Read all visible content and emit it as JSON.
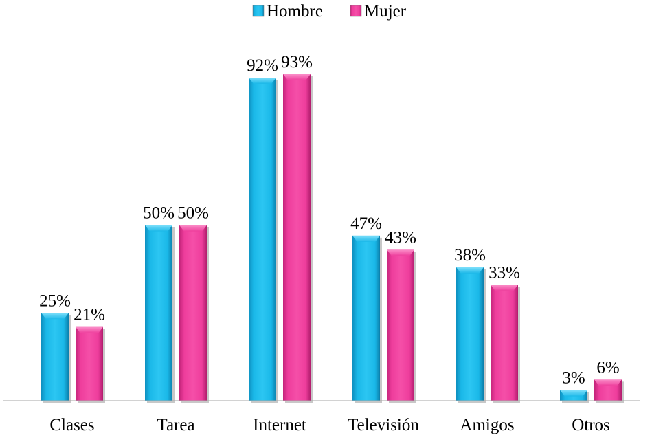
{
  "chart_data": {
    "type": "bar",
    "categories": [
      "Clases",
      "Tarea",
      "Internet",
      "Televisión",
      "Amigos",
      "Otros"
    ],
    "series": [
      {
        "name": "Hombre",
        "values": [
          25,
          50,
          92,
          47,
          38,
          3
        ],
        "labels": [
          "25%",
          "50%",
          "92%",
          "47%",
          "38%",
          "3%"
        ],
        "color": "#1ab8e8"
      },
      {
        "name": "Mujer",
        "values": [
          21,
          50,
          93,
          43,
          33,
          6
        ],
        "labels": [
          "21%",
          "50%",
          "93%",
          "43%",
          "33%",
          "6%"
        ],
        "color": "#ee3d9c"
      }
    ],
    "ylim": [
      0,
      100
    ],
    "grid": false,
    "legend_position": "top"
  }
}
